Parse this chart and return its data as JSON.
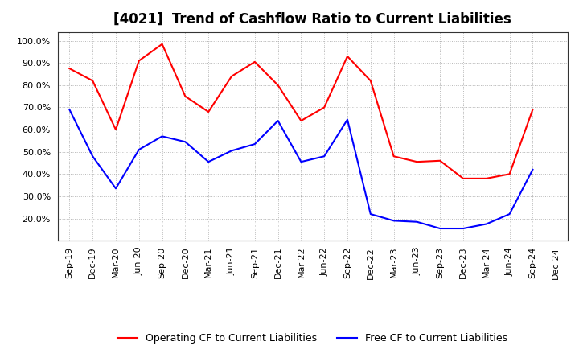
{
  "title": "[4021]  Trend of Cashflow Ratio to Current Liabilities",
  "x_labels": [
    "Sep-19",
    "Dec-19",
    "Mar-20",
    "Jun-20",
    "Sep-20",
    "Dec-20",
    "Mar-21",
    "Jun-21",
    "Sep-21",
    "Dec-21",
    "Mar-22",
    "Jun-22",
    "Sep-22",
    "Dec-22",
    "Mar-23",
    "Jun-23",
    "Sep-23",
    "Dec-23",
    "Mar-24",
    "Jun-24",
    "Sep-24",
    "Dec-24"
  ],
  "operating_cf": [
    0.875,
    0.82,
    0.6,
    0.91,
    0.985,
    0.75,
    0.68,
    0.84,
    0.905,
    0.8,
    0.64,
    0.7,
    0.93,
    0.82,
    0.48,
    0.455,
    0.46,
    0.38,
    0.38,
    0.4,
    0.69,
    null
  ],
  "free_cf": [
    0.69,
    0.48,
    0.335,
    0.51,
    0.57,
    0.545,
    0.455,
    0.505,
    0.535,
    0.64,
    0.455,
    0.48,
    0.645,
    0.22,
    0.19,
    0.185,
    0.155,
    0.155,
    0.175,
    0.22,
    0.42,
    null
  ],
  "operating_color": "#ff0000",
  "free_color": "#0000ff",
  "ylim_min": 0.1,
  "ylim_max": 1.04,
  "yticks": [
    0.2,
    0.3,
    0.4,
    0.5,
    0.6,
    0.7,
    0.8,
    0.9,
    1.0
  ],
  "background_color": "#ffffff",
  "plot_bg_color": "#ffffff",
  "grid_color": "#999999",
  "legend_operating": "Operating CF to Current Liabilities",
  "legend_free": "Free CF to Current Liabilities",
  "title_fontsize": 12,
  "legend_fontsize": 9,
  "tick_fontsize": 8,
  "ylabel_fontsize": 8
}
